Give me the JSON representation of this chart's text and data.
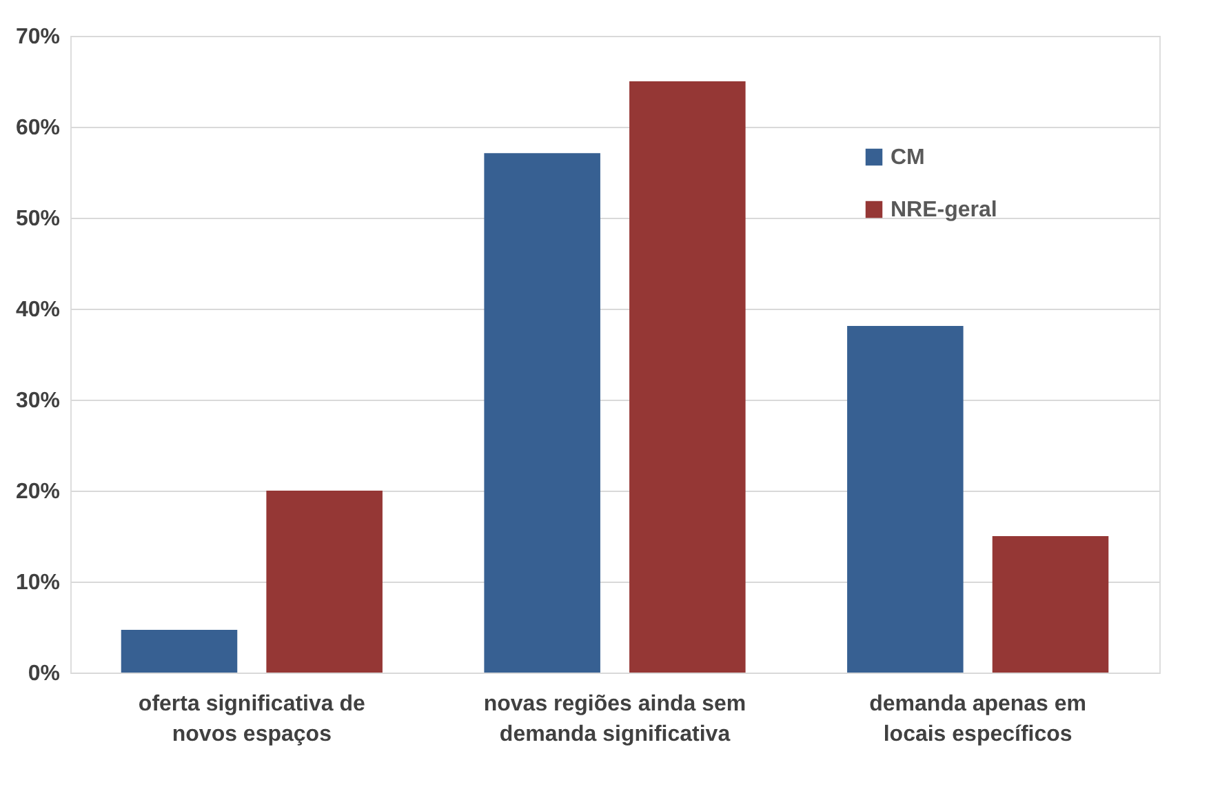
{
  "chart_data": {
    "type": "bar",
    "categories": [
      "oferta significativa de novos espaços",
      "novas regiões ainda sem demanda significativa",
      "demanda apenas em locais específicos"
    ],
    "series": [
      {
        "name": "CM",
        "color": "#376092",
        "values": [
          4.7,
          57.1,
          38.1
        ]
      },
      {
        "name": "NRE-geral",
        "color": "#953735",
        "values": [
          20,
          65,
          15
        ]
      }
    ],
    "ylim": [
      0,
      70
    ],
    "yticks": [
      {
        "value": 0,
        "label": "0%"
      },
      {
        "value": 10,
        "label": "10%"
      },
      {
        "value": 20,
        "label": "20%"
      },
      {
        "value": 30,
        "label": "30%"
      },
      {
        "value": 40,
        "label": "40%"
      },
      {
        "value": 50,
        "label": "50%"
      },
      {
        "value": 60,
        "label": "60%"
      },
      {
        "value": 70,
        "label": "70%"
      }
    ],
    "grid": "y",
    "legend": "top right"
  }
}
